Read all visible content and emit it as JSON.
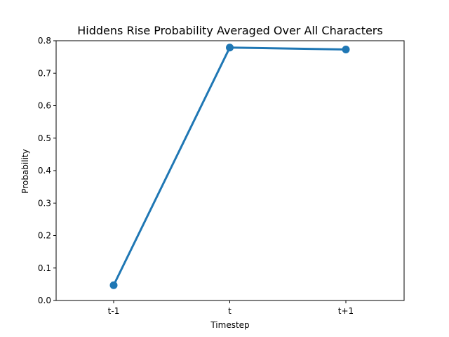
{
  "chart_data": {
    "type": "line",
    "title": "Hiddens Rise Probability Averaged Over All Characters",
    "xlabel": "Timestep",
    "ylabel": "Probability",
    "categories": [
      "t-1",
      "t",
      "t+1"
    ],
    "series": [
      {
        "values": [
          0.047,
          0.779,
          0.773
        ],
        "color": "#1f77b4"
      }
    ],
    "ylim": [
      0.0,
      0.8
    ],
    "yticks": [
      "0.0",
      "0.1",
      "0.2",
      "0.3",
      "0.4",
      "0.5",
      "0.6",
      "0.7",
      "0.8"
    ],
    "grid": false,
    "legend": "none"
  }
}
